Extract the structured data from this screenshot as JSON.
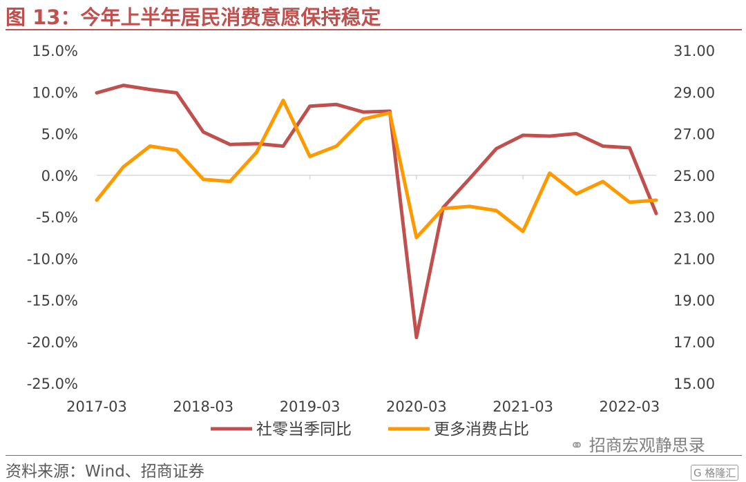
{
  "title": "图 13：今年上半年居民消费意愿保持稳定",
  "source": "资料来源：Wind、招商证券",
  "watermark": "招商宏观静思录",
  "watermark_logo": "格隆汇",
  "chart_data": {
    "type": "line",
    "x_tick_labels": [
      "2017-03",
      "2018-03",
      "2019-03",
      "2020-03",
      "2021-03",
      "2022-03"
    ],
    "x": [
      "2017-03",
      "2017-06",
      "2017-09",
      "2017-12",
      "2018-03",
      "2018-06",
      "2018-09",
      "2018-12",
      "2019-03",
      "2019-06",
      "2019-09",
      "2019-12",
      "2020-03",
      "2020-06",
      "2020-09",
      "2020-12",
      "2021-03",
      "2021-06",
      "2021-09",
      "2021-12",
      "2022-03",
      "2022-06"
    ],
    "y_left": {
      "ylim": [
        -25,
        15
      ],
      "ticks": [
        "15.0%",
        "10.0%",
        "5.0%",
        "0.0%",
        "-5.0%",
        "-10.0%",
        "-15.0%",
        "-20.0%",
        "-25.0%"
      ]
    },
    "y_right": {
      "ylim": [
        15,
        31
      ],
      "ticks": [
        "31.00",
        "29.00",
        "27.00",
        "25.00",
        "23.00",
        "21.00",
        "19.00",
        "17.00",
        "15.00"
      ]
    },
    "series": [
      {
        "name": "社零当季同比",
        "axis": "left",
        "color": "#c0504d",
        "values": [
          9.9,
          10.8,
          10.3,
          9.9,
          5.2,
          3.7,
          3.8,
          3.5,
          8.3,
          8.5,
          7.6,
          7.7,
          -19.5,
          -3.9,
          -0.4,
          3.2,
          4.8,
          4.7,
          5.0,
          3.5,
          3.3,
          -4.6
        ]
      },
      {
        "name": "更多消费占比",
        "axis": "right",
        "color": "#ff9900",
        "values": [
          23.8,
          25.4,
          26.4,
          26.2,
          24.8,
          24.7,
          26.1,
          28.6,
          25.9,
          26.4,
          27.7,
          28.0,
          22.0,
          23.4,
          23.5,
          23.3,
          22.3,
          25.1,
          24.1,
          24.7,
          23.7,
          23.8
        ]
      }
    ],
    "legend_position": "bottom",
    "grid": false
  }
}
